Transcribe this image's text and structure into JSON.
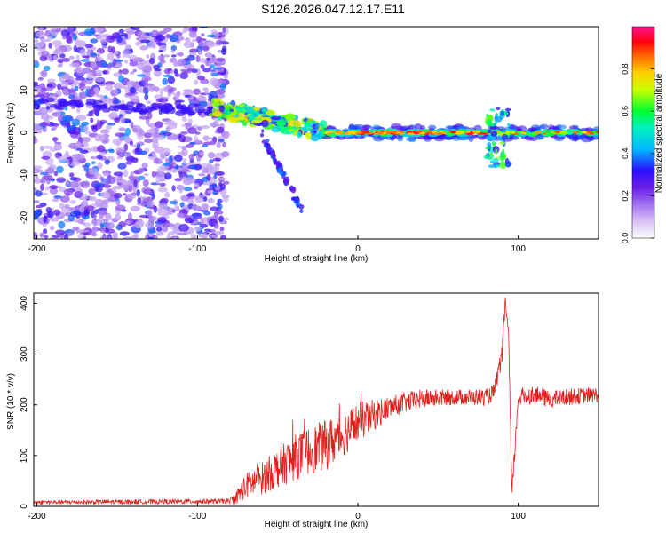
{
  "title": "S126.2026.047.12.17.E11",
  "colors": {
    "snr_line": "#e0201c",
    "spectrogram_bg": "#ffffff",
    "colormap": [
      "#ffffff",
      "#c9a7f0",
      "#8a2be2",
      "#3a00ff",
      "#00c8ff",
      "#00ff66",
      "#ffff00",
      "#ff8800",
      "#ff0000",
      "#ff1493"
    ]
  },
  "chart_data": [
    {
      "id": "spectrogram",
      "type": "heatmap",
      "title": "S126.2026.047.12.17.E11",
      "xlabel": "Height of straight line (km)",
      "ylabel": "Frequency (Hz)",
      "xlim": [
        -202,
        150
      ],
      "ylim": [
        -25,
        25
      ],
      "xticks": [
        -200,
        -100,
        0,
        100
      ],
      "yticks": [
        -20,
        -10,
        0,
        10,
        20
      ],
      "colorbar": {
        "label": "Normalized spectral amplitude",
        "range": [
          0.0,
          1.0
        ],
        "ticks": [
          0.0,
          0.2,
          0.4,
          0.6,
          0.8
        ]
      },
      "regions": [
        {
          "name": "noise",
          "x_range": [
            -202,
            -82
          ],
          "freq_range": [
            -25,
            25
          ],
          "amplitude": [
            0.1,
            0.4
          ]
        },
        {
          "name": "main-trace-onset",
          "x_range": [
            -90,
            -20
          ],
          "freq_center": 3,
          "amplitude": [
            0.3,
            0.8
          ]
        },
        {
          "name": "descending-branch",
          "x_range": [
            -60,
            -35
          ],
          "freq_range": [
            -18,
            0
          ],
          "amplitude": [
            0.2,
            0.4
          ]
        },
        {
          "name": "steady-tone",
          "x_range": [
            -20,
            150
          ],
          "freq_center": 0,
          "amplitude": [
            0.6,
            1.0
          ]
        },
        {
          "name": "disturbance",
          "x_range": [
            80,
            95
          ],
          "freq_range": [
            -8,
            6
          ],
          "amplitude": [
            0.3,
            0.7
          ]
        }
      ]
    },
    {
      "id": "snr",
      "type": "line",
      "title": "",
      "xlabel": "Height of straight line (km)",
      "ylabel": "SNR (10 * v/v)",
      "xlim": [
        -202,
        150
      ],
      "ylim": [
        0,
        420
      ],
      "xticks": [
        -200,
        -100,
        0,
        100
      ],
      "yticks": [
        0,
        100,
        200,
        300,
        400
      ],
      "series": [
        {
          "name": "SNR",
          "color": "#e0201c",
          "envelope": {
            "x": [
              -202,
              -80,
              -75,
              -70,
              -60,
              -50,
              -40,
              -30,
              -20,
              -10,
              0,
              10,
              20,
              30,
              40,
              60,
              80,
              85,
              90,
              92,
              94,
              96,
              100,
              110,
              120,
              130,
              140,
              150
            ],
            "y": [
              8,
              10,
              20,
              40,
              55,
              75,
              95,
              110,
              120,
              140,
              165,
              180,
              195,
              205,
              212,
              215,
              215,
              225,
              300,
              410,
              330,
              20,
              215,
              220,
              210,
              215,
              218,
              220
            ]
          },
          "noise_amplitude": {
            "x": [
              -202,
              -80,
              -70,
              -40,
              -20,
              0,
              20,
              60,
              100,
              150
            ],
            "y": [
              4,
              5,
              25,
              45,
              50,
              40,
              22,
              15,
              18,
              15
            ]
          }
        }
      ]
    }
  ]
}
